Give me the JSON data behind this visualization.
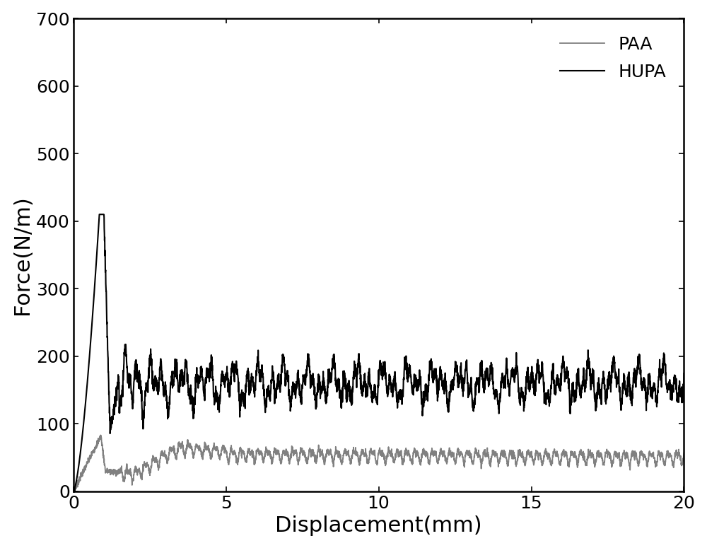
{
  "title": "",
  "xlabel": "Displacement(mm)",
  "ylabel": "Force(N/m)",
  "xlim": [
    0,
    20
  ],
  "ylim": [
    0,
    700
  ],
  "xticks": [
    0,
    5,
    10,
    15,
    20
  ],
  "yticks": [
    0,
    100,
    200,
    300,
    400,
    500,
    600,
    700
  ],
  "PAA_color": "#808080",
  "HUPA_color": "#000000",
  "PAA_linewidth": 1.3,
  "HUPA_linewidth": 1.5,
  "legend_labels": [
    "PAA",
    "HUPA"
  ],
  "legend_loc": "upper right",
  "figure_bg": "#ffffff",
  "xlabel_fontsize": 22,
  "ylabel_fontsize": 22,
  "tick_fontsize": 18,
  "legend_fontsize": 18
}
